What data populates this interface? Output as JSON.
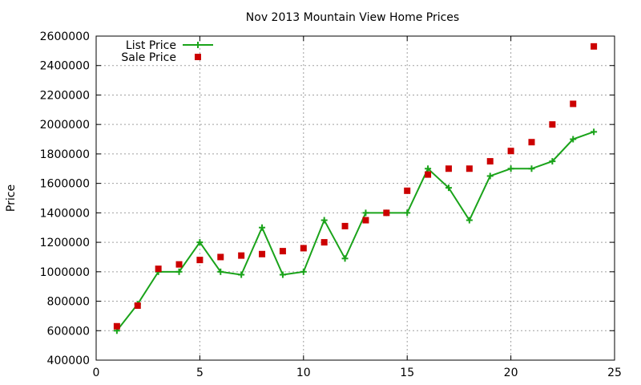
{
  "chart_data": {
    "type": "line",
    "title": "Nov 2013 Mountain View Home Prices",
    "xlabel": "",
    "ylabel": "Price",
    "xlim": [
      0,
      25
    ],
    "ylim": [
      400000,
      2600000
    ],
    "x_ticks": [
      0,
      5,
      10,
      15,
      20,
      25
    ],
    "y_ticks": [
      400000,
      600000,
      800000,
      1000000,
      1200000,
      1400000,
      1600000,
      1800000,
      2000000,
      2200000,
      2400000,
      2600000
    ],
    "x_tick_labels": [
      "0",
      "5",
      "10",
      "15",
      "20",
      "25"
    ],
    "y_tick_labels": [
      "400000",
      "600000",
      "800000",
      "1000000",
      "1200000",
      "1400000",
      "1600000",
      "1800000",
      "2000000",
      "2200000",
      "2400000",
      "2600000"
    ],
    "grid": true,
    "legend_position": "top-left",
    "series": [
      {
        "name": "List Price",
        "kind": "line-with-points",
        "color": "#1aa31a",
        "x": [
          1,
          2,
          3,
          4,
          5,
          6,
          7,
          8,
          9,
          10,
          11,
          12,
          13,
          14,
          15,
          16,
          17,
          18,
          19,
          20,
          21,
          22,
          23,
          24
        ],
        "values": [
          600000,
          780000,
          1000000,
          1000000,
          1200000,
          1000000,
          980000,
          1300000,
          980000,
          1000000,
          1350000,
          1090000,
          1400000,
          1400000,
          1400000,
          1700000,
          1570000,
          1350000,
          1650000,
          1700000,
          1700000,
          1750000,
          1900000,
          1950000
        ]
      },
      {
        "name": "Sale Price",
        "kind": "points",
        "color": "#cc0000",
        "x": [
          1,
          2,
          3,
          4,
          5,
          6,
          7,
          8,
          9,
          10,
          11,
          12,
          13,
          14,
          15,
          16,
          17,
          18,
          19,
          20,
          21,
          22,
          23,
          24
        ],
        "values": [
          630000,
          770000,
          1020000,
          1050000,
          1080000,
          1100000,
          1110000,
          1120000,
          1140000,
          1160000,
          1200000,
          1310000,
          1350000,
          1400000,
          1550000,
          1660000,
          1700000,
          1700000,
          1750000,
          1820000,
          1880000,
          2000000,
          2140000,
          2530000
        ]
      }
    ]
  }
}
